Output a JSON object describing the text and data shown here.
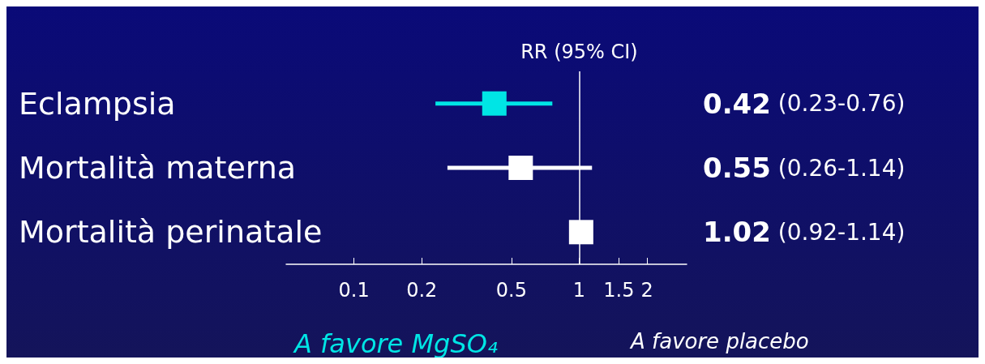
{
  "chart_data": {
    "type": "scatter",
    "orientation": "horizontal",
    "categories": [
      "Eclampsia",
      "Mortalità materna",
      "Mortalità perinatale"
    ],
    "values": [
      0.42,
      0.55,
      1.02
    ],
    "errors": [
      [
        0.23,
        0.76
      ],
      [
        0.26,
        1.14
      ],
      [
        0.92,
        1.14
      ]
    ],
    "colors": [
      "#00e5e5",
      "#ffffff",
      "#ffffff"
    ],
    "value_labels": [
      "0.42 (0.23-0.76)",
      "0.55 (0.26-1.14)",
      "1.02 (0.92-1.14)"
    ],
    "log": "x",
    "xlim": [
      0.05,
      3
    ],
    "xticks": [
      0.1,
      0.2,
      0.5,
      1,
      1.5,
      2
    ],
    "ref_lines": [
      {
        "axis": "x",
        "value": 1,
        "label": "RR (95% CI)",
        "color": "#ffffff"
      }
    ],
    "annotations": [
      "A favore MgSO₄",
      "A favore placebo"
    ],
    "marker": "square",
    "grid": false
  }
}
